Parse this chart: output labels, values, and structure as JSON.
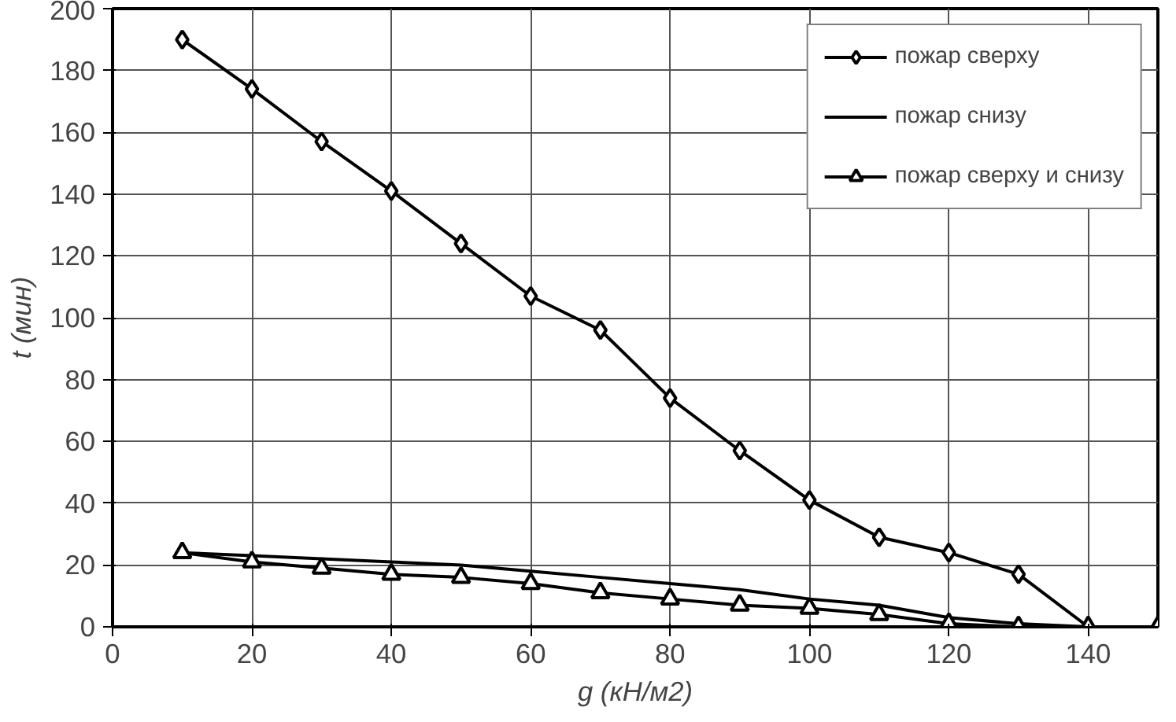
{
  "chart_data": {
    "type": "line",
    "xlabel": "g (кН/м2)",
    "ylabel": "t (мин)",
    "x": [
      10,
      20,
      30,
      40,
      50,
      60,
      70,
      80,
      90,
      100,
      110,
      120,
      130,
      140,
      150
    ],
    "series": [
      {
        "name": "пожар сверху",
        "color": "#000000",
        "marker": "diamond",
        "values": [
          190,
          174,
          157,
          141,
          124,
          107,
          96,
          74,
          57,
          41,
          29,
          24,
          17,
          0,
          null
        ]
      },
      {
        "name": "пожар снизу",
        "color": "#000000",
        "marker": "none",
        "values": [
          24,
          23,
          22,
          21,
          20,
          18,
          16,
          14,
          12,
          9,
          7,
          3,
          1,
          0,
          null
        ]
      },
      {
        "name": "пожар сверху и снизу",
        "color": "#000000",
        "marker": "triangle",
        "values": [
          24,
          21,
          19,
          17,
          16,
          14,
          11,
          9,
          7,
          6,
          4,
          1,
          0,
          0,
          0
        ]
      }
    ],
    "xlim": [
      0,
      150
    ],
    "ylim": [
      0,
      200
    ],
    "xticks": [
      0,
      20,
      40,
      60,
      80,
      100,
      120,
      140
    ],
    "yticks": [
      0,
      20,
      40,
      60,
      80,
      100,
      120,
      140,
      160,
      180,
      200
    ],
    "grid": true,
    "legend": "top right",
    "line_style": "solid"
  }
}
